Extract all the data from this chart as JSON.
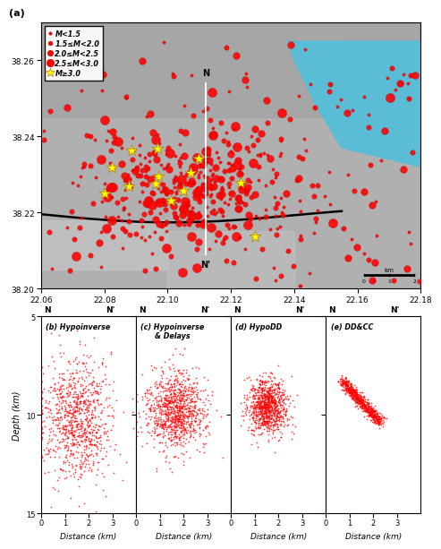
{
  "map_xlim": [
    22.06,
    22.18
  ],
  "map_ylim": [
    38.2,
    38.27
  ],
  "map_bg_color": "#b8b8b8",
  "sea_color": "#5BBCD6",
  "depth_ylim": [
    5,
    15
  ],
  "dist_xlim": [
    0,
    4
  ],
  "depth_label": "Depth (km)",
  "dist_label": "Distance (km)",
  "dot_color": "red",
  "star_color": "yellow",
  "map_xticks": [
    22.06,
    22.08,
    22.1,
    22.12,
    22.14,
    22.16,
    22.18
  ],
  "map_yticks": [
    38.2,
    38.22,
    38.24,
    38.26
  ],
  "legend_labels": [
    "M<1.5",
    "1.5≤M<2.0",
    "2.0≤M<2.5",
    "2.5≤M<3.0",
    "M≥3.0"
  ],
  "panel_titles": [
    "(b) Hypoinverse",
    "(c) Hypoinverse\n& Delays",
    "(d) HypoDD",
    "(e) DD&CC"
  ]
}
